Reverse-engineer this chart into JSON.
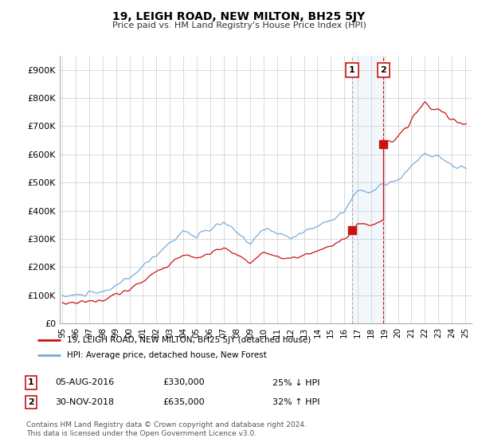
{
  "title": "19, LEIGH ROAD, NEW MILTON, BH25 5JY",
  "subtitle": "Price paid vs. HM Land Registry's House Price Index (HPI)",
  "legend_line1": "19, LEIGH ROAD, NEW MILTON, BH25 5JY (detached house)",
  "legend_line2": "HPI: Average price, detached house, New Forest",
  "annotation1_label": "1",
  "annotation1_date": "05-AUG-2016",
  "annotation1_price": "£330,000",
  "annotation1_hpi": "25% ↓ HPI",
  "annotation2_label": "2",
  "annotation2_date": "30-NOV-2018",
  "annotation2_price": "£635,000",
  "annotation2_hpi": "32% ↑ HPI",
  "footer": "Contains HM Land Registry data © Crown copyright and database right 2024.\nThis data is licensed under the Open Government Licence v3.0.",
  "hpi_color": "#7aabdb",
  "property_color": "#cc1111",
  "shade_color": "#ddeeff",
  "dashed1_color": "#aaaaaa",
  "dashed2_color": "#cc1111",
  "ylim": [
    0,
    950000
  ],
  "yticks": [
    0,
    100000,
    200000,
    300000,
    400000,
    500000,
    600000,
    700000,
    800000,
    900000
  ],
  "background_color": "#ffffff",
  "grid_color": "#cccccc",
  "sale1_x": 2016.58,
  "sale1_y": 330000,
  "sale2_x": 2018.92,
  "sale2_y": 635000,
  "xmin": 1994.8,
  "xmax": 2025.5
}
